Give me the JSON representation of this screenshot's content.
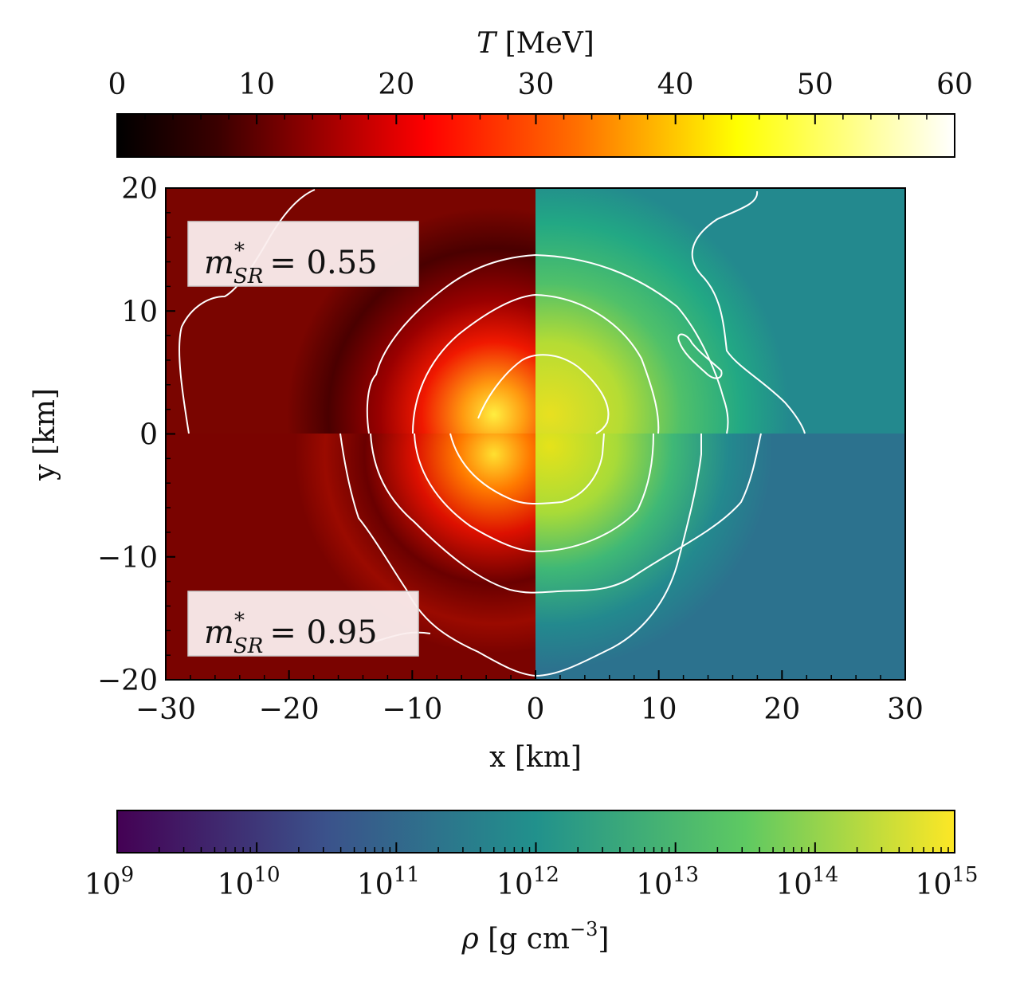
{
  "chart_data": {
    "type": "heatmap",
    "description_of_halves": [
      "top half: m*_SR = 0.55",
      "bottom half: m*_SR = 0.95"
    ],
    "xlabel": "x [km]",
    "ylabel": "y [km]",
    "xlim": [
      -30,
      30
    ],
    "ylim": [
      -20,
      20
    ],
    "xticks": [
      -30,
      -20,
      -10,
      0,
      10,
      20,
      30
    ],
    "xtick_labels": [
      "−30",
      "−20",
      "−10",
      "0",
      "10",
      "20",
      "30"
    ],
    "yticks": [
      -20,
      -10,
      0,
      10,
      20
    ],
    "ytick_labels": [
      "−20",
      "−10",
      "0",
      "10",
      "20"
    ],
    "left_half_quantity": "temperature",
    "right_half_quantity": "density",
    "contour_color": "#ffffff",
    "annotations": [
      {
        "symbol": "m",
        "sup": "*",
        "sub": "SR",
        "value": "= 0.55",
        "location": "upper-left"
      },
      {
        "symbol": "m",
        "sup": "*",
        "sub": "SR",
        "value": "= 0.95",
        "location": "lower-left"
      }
    ],
    "colorbars": [
      {
        "position": "top",
        "label_symbol": "T",
        "label_unit": "[MeV]",
        "colormap": "hot",
        "range": [
          0,
          60
        ],
        "ticks": [
          0,
          10,
          20,
          30,
          40,
          50,
          60
        ],
        "tick_labels": [
          "0",
          "10",
          "20",
          "30",
          "40",
          "50",
          "60"
        ],
        "colors": [
          "#000000",
          "#e30000",
          "#ff9a00",
          "#ffff10",
          "#ffffff"
        ]
      },
      {
        "position": "bottom",
        "label_symbol": "ρ",
        "label_unit": "[g cm",
        "label_exp": "−3",
        "label_close": "]",
        "colormap": "viridis",
        "scale": "log",
        "range": [
          1000000000.0,
          1000000000000000.0
        ],
        "ticks": [
          1000000000.0,
          10000000000.0,
          100000000000.0,
          1000000000000.0,
          10000000000000.0,
          100000000000000.0,
          1000000000000000.0
        ],
        "tick_base": "10",
        "tick_exponents": [
          "9",
          "10",
          "11",
          "12",
          "13",
          "14",
          "15"
        ],
        "colors": [
          "#440154",
          "#3b528b",
          "#21918c",
          "#5ec962",
          "#fde725"
        ]
      }
    ]
  }
}
